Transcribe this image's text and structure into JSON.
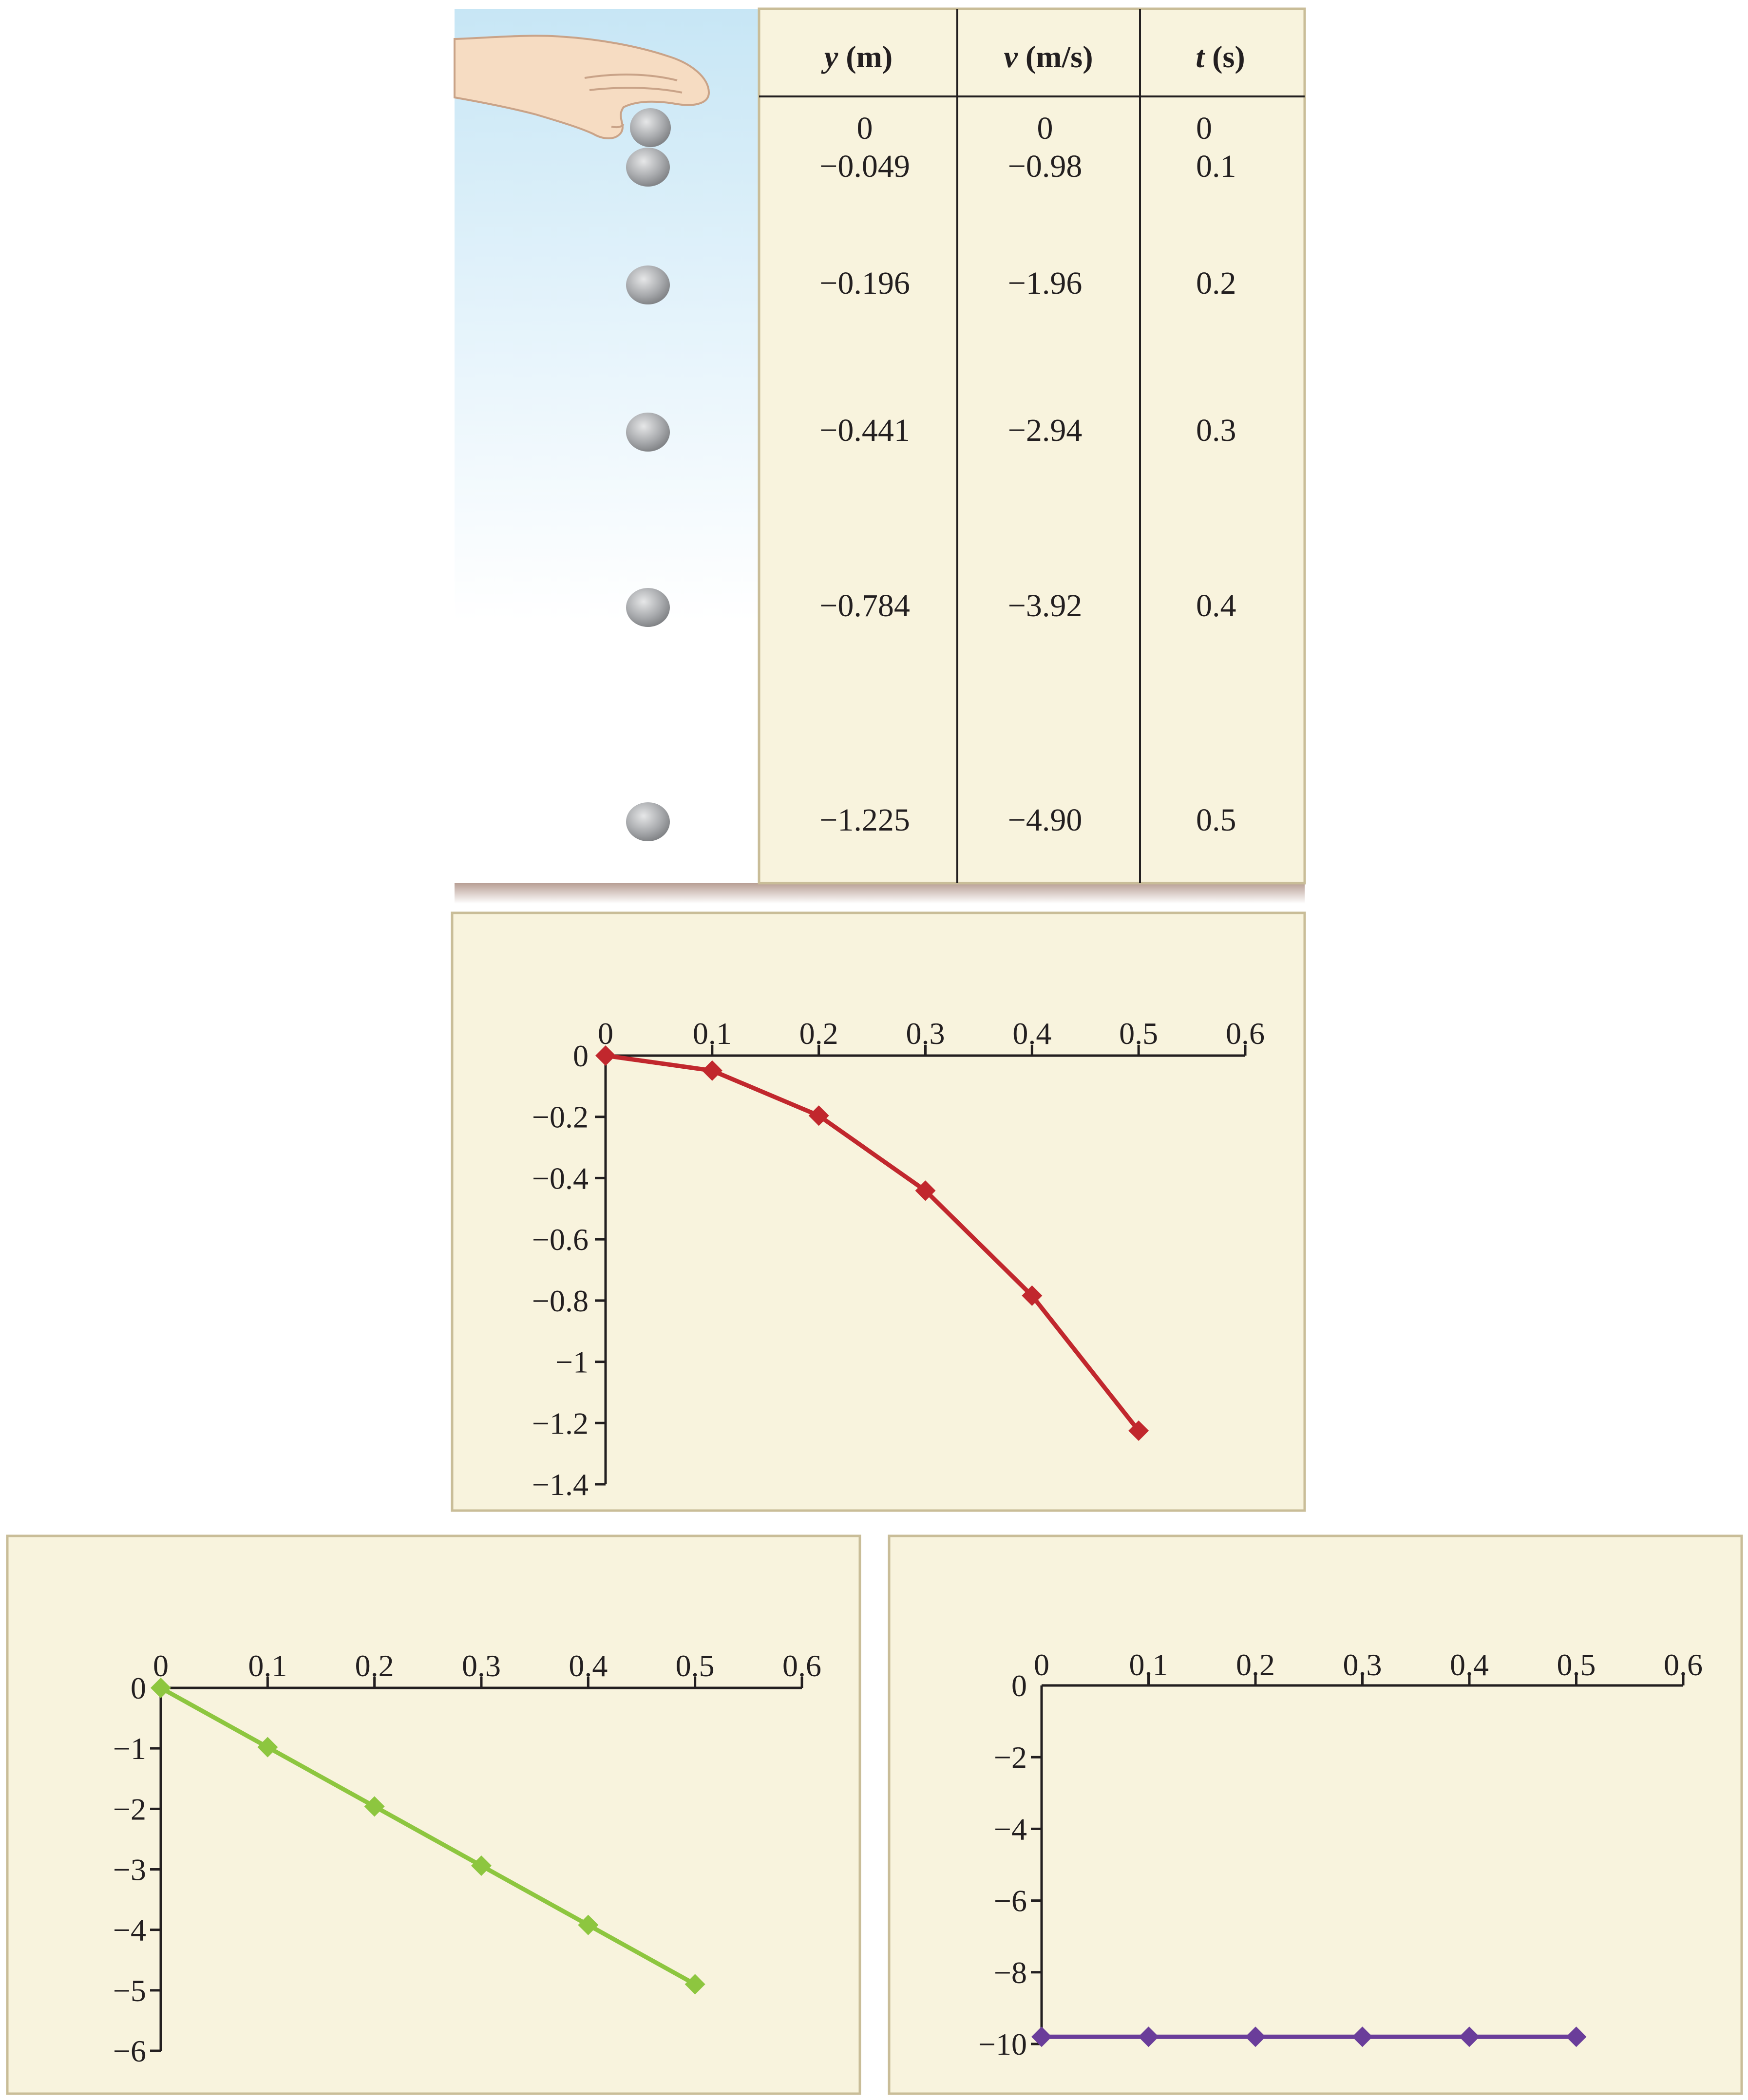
{
  "table": {
    "headers": [
      {
        "symbol": "y",
        "unit": " (m)"
      },
      {
        "symbol": "v",
        "unit": " (m/s)"
      },
      {
        "symbol": "t",
        "unit": " (s)"
      }
    ],
    "rows": [
      [
        "0",
        "0",
        "0"
      ],
      [
        "−0.049",
        "−0.98",
        "0.1"
      ],
      [
        "−0.196",
        "−1.96",
        "0.2"
      ],
      [
        "−0.441",
        "−2.94",
        "0.3"
      ],
      [
        "−0.784",
        "−3.92",
        "0.4"
      ],
      [
        "−1.225",
        "−4.90",
        "0.5"
      ]
    ]
  },
  "colors": {
    "panel_bg": "#f8f3dd",
    "panel_border": "#c9bd98",
    "sky_top": "#c7e6f5",
    "ball": "#a8aaad",
    "hand": "#f6dcc2"
  },
  "chart_data": [
    {
      "type": "line",
      "x": [
        0,
        0.1,
        0.2,
        0.3,
        0.4,
        0.5
      ],
      "y": [
        0,
        -0.049,
        -0.196,
        -0.441,
        -0.784,
        -1.225
      ],
      "xlim": [
        0,
        0.6
      ],
      "ylim": [
        -1.4,
        0
      ],
      "xticks": [
        "0",
        "0.1",
        "0.2",
        "0.3",
        "0.4",
        "0.5",
        "0.6"
      ],
      "yticks": [
        "0",
        "−0.2",
        "−0.4",
        "−0.6",
        "−0.8",
        "−1",
        "−1.2",
        "−1.4"
      ],
      "color": "#c1272d",
      "marker": "diamond"
    },
    {
      "type": "line",
      "x": [
        0,
        0.1,
        0.2,
        0.3,
        0.4,
        0.5
      ],
      "y": [
        0,
        -0.98,
        -1.96,
        -2.94,
        -3.92,
        -4.9
      ],
      "xlim": [
        0,
        0.6
      ],
      "ylim": [
        -6,
        0
      ],
      "xticks": [
        "0",
        "0.1",
        "0.2",
        "0.3",
        "0.4",
        "0.5",
        "0.6"
      ],
      "yticks": [
        "0",
        "−1",
        "−2",
        "−3",
        "−4",
        "−5",
        "−6"
      ],
      "color": "#8dc63f",
      "marker": "diamond"
    },
    {
      "type": "line",
      "x": [
        0,
        0.1,
        0.2,
        0.3,
        0.4,
        0.5
      ],
      "y": [
        -9.8,
        -9.8,
        -9.8,
        -9.8,
        -9.8,
        -9.8
      ],
      "xlim": [
        0,
        0.6
      ],
      "ylim": [
        -10,
        0
      ],
      "xticks": [
        "0",
        "0.1",
        "0.2",
        "0.3",
        "0.4",
        "0.5",
        "0.6"
      ],
      "yticks": [
        "0",
        "−2",
        "−4",
        "−6",
        "−8",
        "−10"
      ],
      "color": "#6a3d9a",
      "marker": "diamond"
    }
  ]
}
